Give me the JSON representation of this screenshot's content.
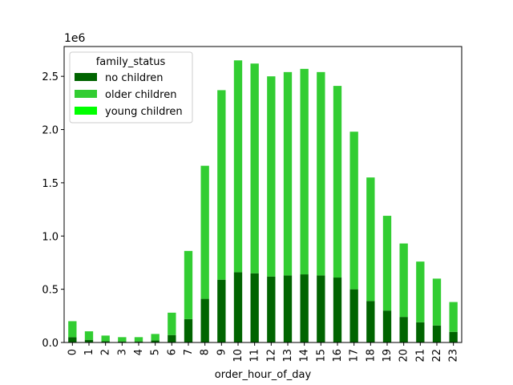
{
  "chart_data": {
    "type": "bar",
    "stacked": true,
    "title": "",
    "xlabel": "order_hour_of_day",
    "ylabel": "",
    "y_offset_label": "1e6",
    "ylim": [
      0,
      2.78
    ],
    "yticks": [
      0.0,
      0.5,
      1.0,
      1.5,
      2.0,
      2.5
    ],
    "ytick_labels": [
      "0.0",
      "0.5",
      "1.0",
      "1.5",
      "2.0",
      "2.5"
    ],
    "categories": [
      "0",
      "1",
      "2",
      "3",
      "4",
      "5",
      "6",
      "7",
      "8",
      "9",
      "10",
      "11",
      "12",
      "13",
      "14",
      "15",
      "16",
      "17",
      "18",
      "19",
      "20",
      "21",
      "22",
      "23"
    ],
    "legend": {
      "title": "family_status",
      "location": "upper left"
    },
    "series": [
      {
        "name": "no children",
        "color": "#006400",
        "values": [
          0.05,
          0.025,
          0.012,
          0.01,
          0.01,
          0.02,
          0.07,
          0.22,
          0.41,
          0.59,
          0.66,
          0.65,
          0.62,
          0.63,
          0.64,
          0.63,
          0.61,
          0.5,
          0.39,
          0.3,
          0.24,
          0.19,
          0.16,
          0.1
        ]
      },
      {
        "name": "older children",
        "color": "#32cd32",
        "values": [
          0.15,
          0.08,
          0.053,
          0.04,
          0.04,
          0.06,
          0.21,
          0.64,
          1.25,
          1.78,
          1.99,
          1.97,
          1.88,
          1.91,
          1.93,
          1.91,
          1.8,
          1.48,
          1.16,
          0.89,
          0.69,
          0.57,
          0.44,
          0.28
        ]
      },
      {
        "name": "young children",
        "color": "#00ff00",
        "values": [
          0.0,
          0.0,
          0.0,
          0.0,
          0.0,
          0.0,
          0.0,
          0.0,
          0.0,
          0.0,
          0.0,
          0.0,
          0.0,
          0.0,
          0.0,
          0.0,
          0.0,
          0.0,
          0.0,
          0.0,
          0.0,
          0.0,
          0.0,
          0.0
        ]
      }
    ]
  }
}
